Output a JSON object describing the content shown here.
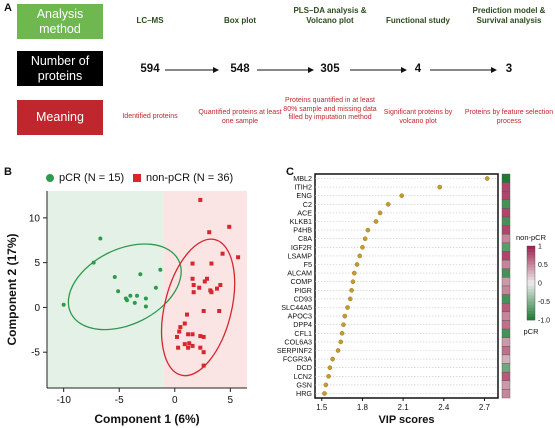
{
  "panelA": {
    "letter": "A",
    "tags": {
      "method": "Analysis method",
      "proteins": "Number of proteins",
      "meaning": "Meaning"
    },
    "colors": {
      "method": "#6fb84f",
      "proteins": "#000000",
      "meaning": "#c0262d"
    },
    "steps": [
      {
        "title": "LC–MS",
        "count": "594",
        "meaning": "Identified proteins"
      },
      {
        "title": "Box plot",
        "count": "548",
        "meaning": "Quantified proteins at least one sample"
      },
      {
        "title": "PLS–DA analysis & Volcano plot",
        "count": "305",
        "meaning": "Proteins quantified in at least 80% sample and missing data filled by imputation method"
      },
      {
        "title": "Functional study",
        "count": "4",
        "meaning": "Significant proteins by volcano plot"
      },
      {
        "title": "Prediction model & Survival analysis",
        "count": "3",
        "meaning": "Proteins by feature selection process"
      }
    ]
  },
  "chart_data": [
    {
      "type": "scatter",
      "panel": "B",
      "xlabel": "Component 1 (6%)",
      "ylabel": "Component 2 (17%)",
      "xlim": [
        -11.5,
        6.5
      ],
      "ylim": [
        -9,
        13
      ],
      "xticks": [
        "-10",
        "-5",
        "0",
        "5"
      ],
      "yticks": [
        "-5",
        "0",
        "5",
        "10"
      ],
      "legend": [
        "pCR (N = 15)",
        "non-pCR (N = 36)"
      ],
      "colors": {
        "pCR": "#2e9a4e",
        "nonpCR": "#d6262e",
        "pCRbg": "#e3f1e6",
        "nonpCRbg": "#fbe4e4"
      },
      "series": [
        {
          "name": "pCR (N = 15)",
          "x": [
            -10,
            -7.3,
            -6.7,
            -5.4,
            -5.1,
            -4.4,
            -4.3,
            -4.0,
            -3.6,
            -3.4,
            -3.1,
            -2.6,
            -2.6,
            -1.7,
            -1.3
          ],
          "y": [
            0.3,
            5.0,
            7.7,
            3.4,
            1.8,
            1.0,
            0.8,
            1.3,
            0.5,
            1.3,
            3.7,
            1.0,
            0.1,
            2.2,
            4.2
          ]
        },
        {
          "name": "non-pCR (N = 36)",
          "x": [
            2.3,
            4.9,
            3.1,
            5.7,
            4.3,
            1.6,
            3.3,
            1.6,
            2.9,
            2.2,
            4.1,
            1.7,
            1.7,
            3.3,
            3.8,
            3.2,
            2.7,
            1.1,
            2.6,
            4.0,
            0.9,
            0.5,
            0.4,
            0.2,
            1.6,
            1.2,
            2.3,
            2.6,
            1.3,
            0.9,
            0.3,
            1.6,
            1.2,
            2.3,
            2.6,
            2.6
          ],
          "y": [
            12.0,
            9.0,
            8.4,
            5.6,
            6.0,
            4.9,
            4.9,
            3.2,
            3.2,
            2.2,
            2.5,
            2.5,
            1.7,
            1.7,
            2.1,
            1.9,
            2.9,
            -0.8,
            -0.4,
            -0.4,
            -1.8,
            -2.2,
            -2.7,
            -3.3,
            -3.0,
            -3.0,
            -3.2,
            -3.3,
            -4.0,
            -4.1,
            -4.5,
            -4.3,
            -4.5,
            -4.5,
            -5.0,
            -6.5
          ]
        }
      ],
      "ellipses": [
        {
          "group": "pCR",
          "cx": -4.5,
          "cy": 2.3,
          "rx": 5.4,
          "ry": 4.2,
          "angle": -26
        },
        {
          "group": "non-pCR",
          "cx": 2.1,
          "cy": 0.0,
          "rx": 3.0,
          "ry": 7.8,
          "angle": 14
        }
      ]
    },
    {
      "type": "scatter",
      "panel": "C",
      "xlabel": "VIP scores",
      "xlim": [
        1.45,
        2.8
      ],
      "xticks": [
        1.5,
        1.8,
        2.1,
        2.4,
        2.7
      ],
      "xtick_labels": [
        "1.5",
        "1.8",
        "2.1",
        "2.4",
        "2.7"
      ],
      "categories": [
        "MBL2",
        "ITIH2",
        "ENG",
        "C2",
        "ACE",
        "KLKB1",
        "P4HB",
        "C8A",
        "IGF2R",
        "LSAMP",
        "F5",
        "ALCAM",
        "COMP",
        "PIGR",
        "CD93",
        "SLC44A5",
        "APOC3",
        "DPP4",
        "CFL1",
        "COL6A3",
        "SERPINF2",
        "FCGR3A",
        "DCD",
        "LCN2",
        "GSN",
        "HRG"
      ],
      "values": [
        2.72,
        2.37,
        2.09,
        1.99,
        1.93,
        1.9,
        1.84,
        1.82,
        1.8,
        1.78,
        1.76,
        1.74,
        1.73,
        1.72,
        1.71,
        1.69,
        1.67,
        1.66,
        1.65,
        1.64,
        1.62,
        1.58,
        1.56,
        1.55,
        1.53,
        1.52
      ],
      "heat": [
        -1.0,
        0.8,
        0.8,
        -0.8,
        0.8,
        -0.8,
        0.8,
        0.5,
        -0.7,
        0.8,
        0.5,
        -0.8,
        0.4,
        0.5,
        -0.8,
        0.7,
        0.5,
        0.6,
        -0.8,
        0.4,
        0.6,
        0.3,
        -0.6,
        0.7,
        0.4,
        0.5
      ],
      "colorbar": {
        "title_top": "non-pCR",
        "title_bottom": "pCR",
        "ticks": [
          "1",
          "0.5",
          "0",
          "-0.5",
          "-1.0"
        ]
      },
      "dot_color": "#c79a2e"
    }
  ],
  "panelB": {
    "letter": "B"
  },
  "panelC": {
    "letter": "C"
  }
}
